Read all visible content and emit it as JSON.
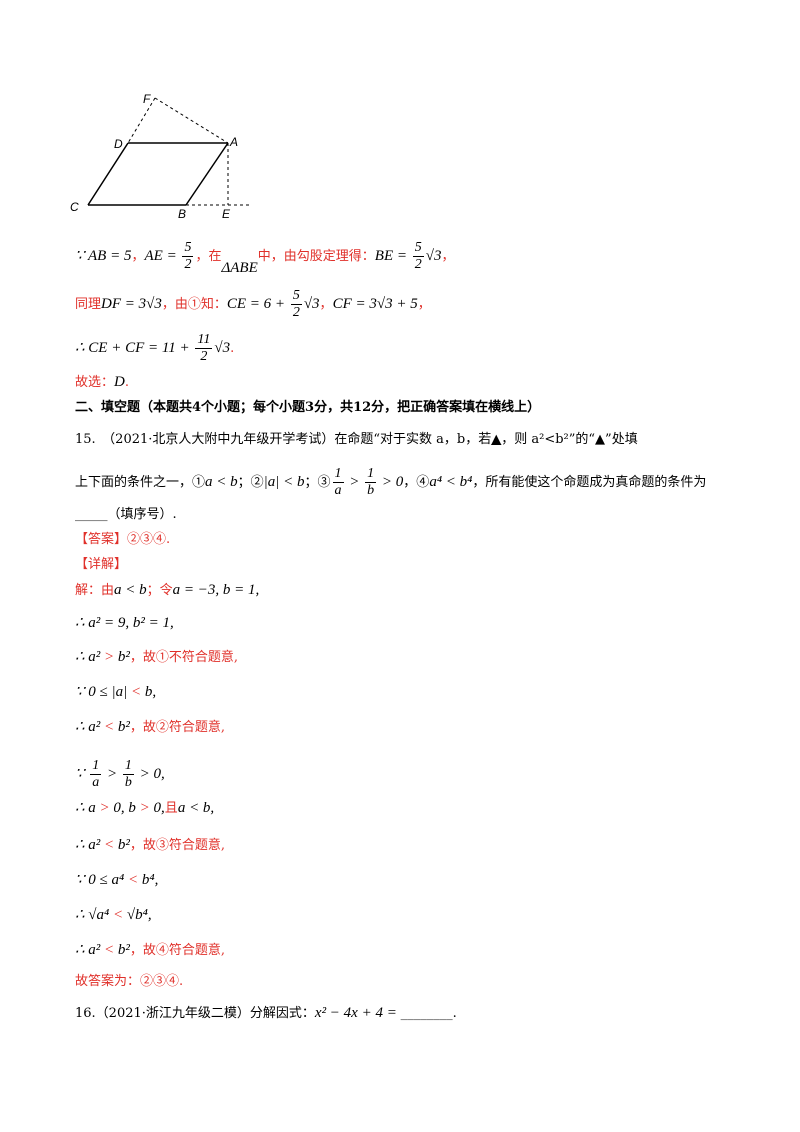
{
  "figure": {
    "labels": [
      "F",
      "D",
      "A",
      "C",
      "B",
      "E"
    ]
  },
  "lines": [
    [
      "∵ AB = 5",
      "，",
      "AE = ",
      "5",
      "2",
      "，在",
      "ΔABE",
      "中，由勾股定理得：",
      "BE = ",
      "5",
      "2",
      "√3",
      "，"
    ],
    [
      "同理",
      "DF = 3√3",
      "，由①知：",
      "CE = 6 + ",
      "5",
      "2",
      "√3",
      "，",
      "CF = 3√3 + 5",
      "，"
    ],
    [
      "∴ CE + CF = 11 + ",
      "11",
      "2",
      "√3",
      "."
    ],
    [
      "故选：",
      "D",
      "."
    ],
    [
      "二、填空题（本题共4个小题；每个小题3分，共12分，把正确答案填在横线上）"
    ],
    [
      "15.　（2021·北京人大附中九年级开学考试）在命题“对于实数 a，b，若",
      "▲",
      "，则 a²<b²”的“▲”处填"
    ],
    [
      "上下面的条件之一，①",
      "a < b",
      "；②",
      "|a| < b",
      "；③",
      "1",
      "a",
      " > ",
      "1",
      "b",
      " > 0",
      "，④",
      "a⁴ < b⁴",
      "，所有能使这个命题成为真命题的条件为"
    ],
    [
      "_____",
      "（填序号）."
    ],
    [
      "【答案】②③④."
    ],
    [
      "【详解】"
    ],
    [
      "解：由",
      "a < b",
      "；令",
      "a = −3, b = 1,"
    ],
    [
      "∴ a² = 9, b² = 1,"
    ],
    [
      "∴ a²",
      " > ",
      "b²",
      "，故①不符合题意,"
    ],
    [
      "∵ 0 ≤ |a|",
      " < ",
      "b,"
    ],
    [
      "∴ a²",
      " < ",
      "b²",
      "，故②符合题意,"
    ],
    [
      "∵ ",
      "1",
      "a",
      " > ",
      "1",
      "b",
      " > 0,"
    ],
    [
      "∴ a",
      " > ",
      "0, b",
      " > ",
      "0,",
      "且",
      "a < b,"
    ],
    [
      "∴ a²",
      " < ",
      "b²",
      "，故③符合题意,"
    ],
    [
      "∵ 0 ≤ a⁴",
      " < ",
      "b⁴,"
    ],
    [
      "∴ √a⁴",
      " < ",
      "√b⁴,"
    ],
    [
      "∴ a²",
      " < ",
      "b²",
      "，故④符合题意,"
    ],
    [
      "故答案为：②③④."
    ],
    [
      "16.（2021·浙江九年级二模）分解因式：",
      "x² − 4x + 4 = ",
      "________."
    ]
  ]
}
